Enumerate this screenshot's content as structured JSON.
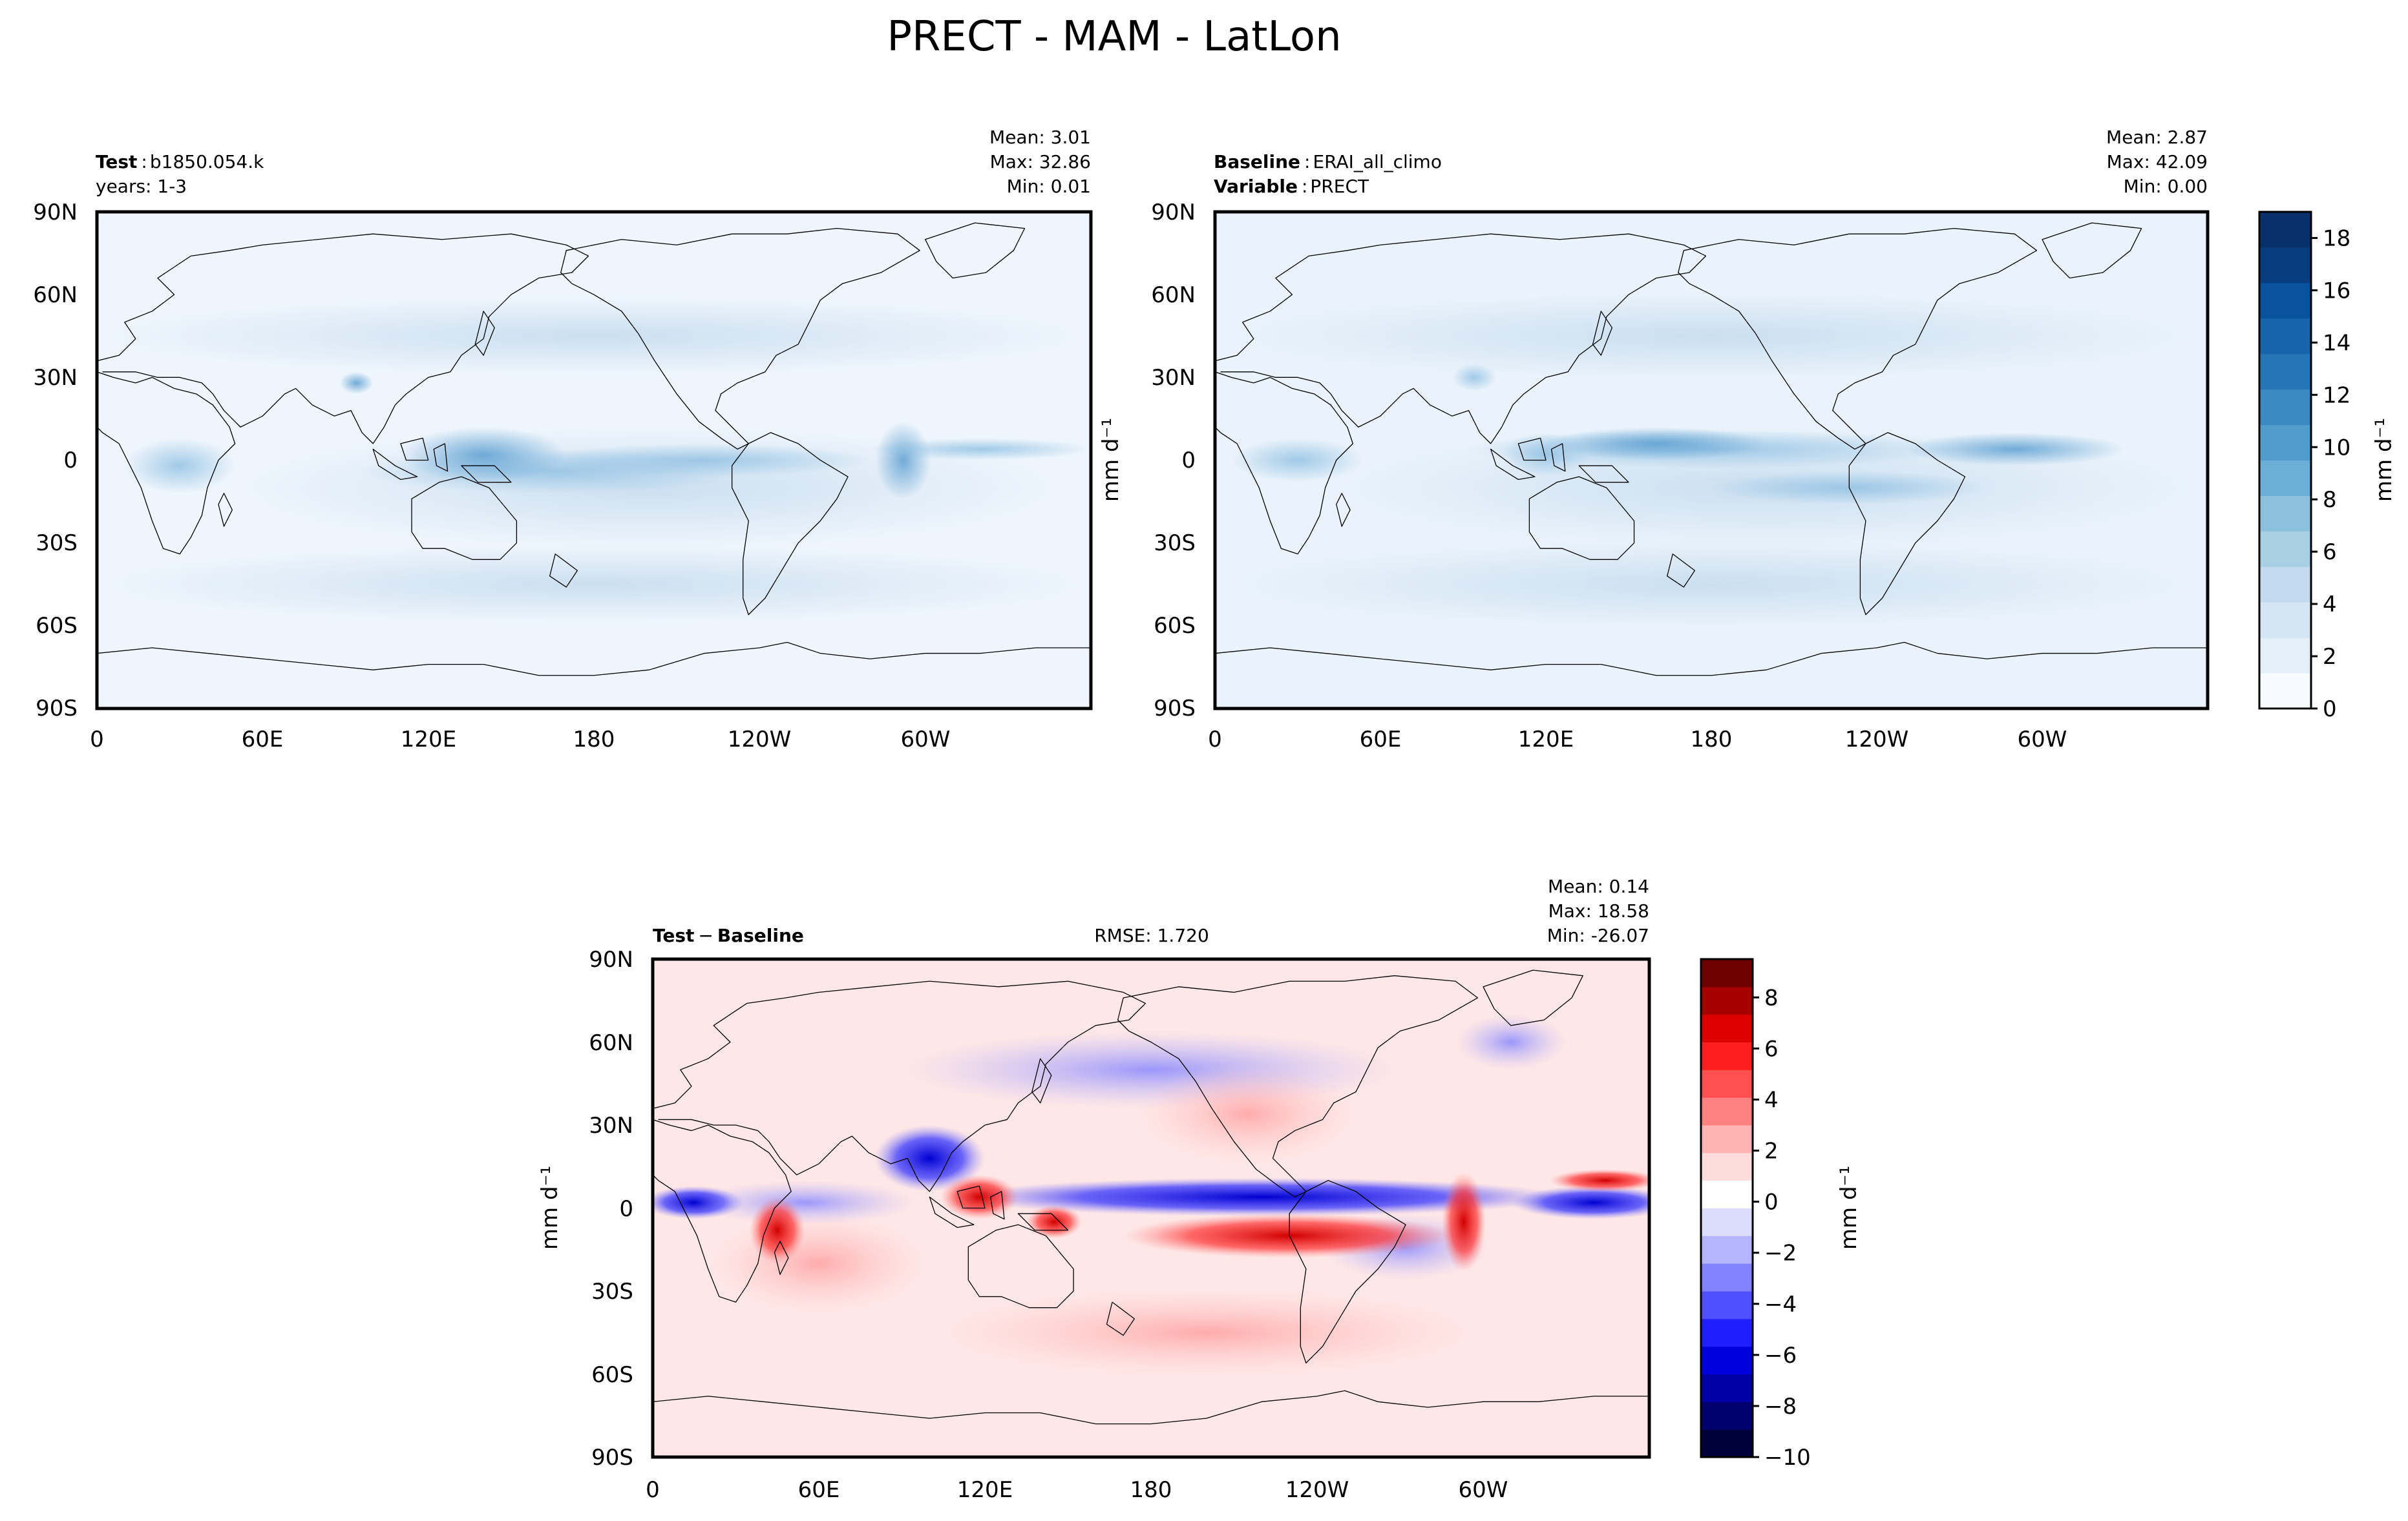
{
  "figure": {
    "title": "PRECT - MAM - LatLon"
  },
  "chart_data": [
    {
      "type": "heatmap",
      "panel": "test",
      "label_bold": "Test",
      "label_sep": ":",
      "label_value": "b1850.054.k",
      "sub_label": "years: 1-3",
      "stats": {
        "mean": "Mean:  3.01",
        "max": "Max: 32.86",
        "min": "Min:  0.01"
      },
      "x_ticks": [
        "0",
        "60E",
        "120E",
        "180",
        "120W",
        "60W"
      ],
      "y_ticks": [
        "90N",
        "60N",
        "30N",
        "0",
        "30S",
        "60S",
        "90S"
      ],
      "xlim": [
        0,
        360
      ],
      "ylim": [
        -90,
        90
      ]
    },
    {
      "type": "heatmap",
      "panel": "baseline",
      "label_bold": "Baseline",
      "label_sep": ":",
      "label_value": "ERAI_all_climo",
      "sub_label_bold": "Variable",
      "sub_label_value": "PRECT",
      "stats": {
        "mean": "Mean:  2.87",
        "max": "Max: 42.09",
        "min": "Min:  0.00"
      },
      "ylabel": "mm d⁻¹",
      "x_ticks": [
        "0",
        "60E",
        "120E",
        "180",
        "120W",
        "60W"
      ],
      "y_ticks": [
        "90N",
        "60N",
        "30N",
        "0",
        "30S",
        "60S",
        "90S"
      ],
      "xlim": [
        0,
        360
      ],
      "ylim": [
        -90,
        90
      ],
      "colorbar": {
        "label": "mm d⁻¹",
        "ticks": [
          "0",
          "2",
          "4",
          "6",
          "8",
          "10",
          "12",
          "14",
          "16",
          "18"
        ],
        "range": [
          0,
          19
        ],
        "colors": [
          "#f7fbff",
          "#e4eff9",
          "#d4e5f4",
          "#c3daee",
          "#a9cfe5",
          "#8dc0dd",
          "#6baed6",
          "#519ccc",
          "#3a89c1",
          "#2575b7",
          "#1764ab",
          "#09529d",
          "#083d7f",
          "#08306b"
        ]
      }
    },
    {
      "type": "heatmap",
      "panel": "difference",
      "label_bold_a": "Test",
      "label_op": "−",
      "label_bold_b": "Baseline",
      "rmse": "RMSE: 1.720",
      "stats": {
        "mean": "Mean:  0.14",
        "max": "Max: 18.58",
        "min": "Min: -26.07"
      },
      "ylabel": "mm d⁻¹",
      "x_ticks": [
        "0",
        "60E",
        "120E",
        "180",
        "120W",
        "60W"
      ],
      "y_ticks": [
        "90N",
        "60N",
        "30N",
        "0",
        "30S",
        "60S",
        "90S"
      ],
      "xlim": [
        0,
        360
      ],
      "ylim": [
        -90,
        90
      ],
      "colorbar": {
        "label": "mm d⁻¹",
        "ticks": [
          "−10",
          "−8",
          "−6",
          "−4",
          "−2",
          "0",
          "2",
          "4",
          "6",
          "8"
        ],
        "range": [
          -10,
          9.5
        ],
        "colors": [
          "#00003a",
          "#00006e",
          "#0000a6",
          "#0000dc",
          "#1e1eff",
          "#5050ff",
          "#8282ff",
          "#b4b4ff",
          "#dcdcff",
          "#ffffff",
          "#ffdcdc",
          "#ffb4b4",
          "#ff8282",
          "#ff5050",
          "#ff1e1e",
          "#dc0000",
          "#a60000",
          "#6e0000"
        ]
      }
    }
  ]
}
